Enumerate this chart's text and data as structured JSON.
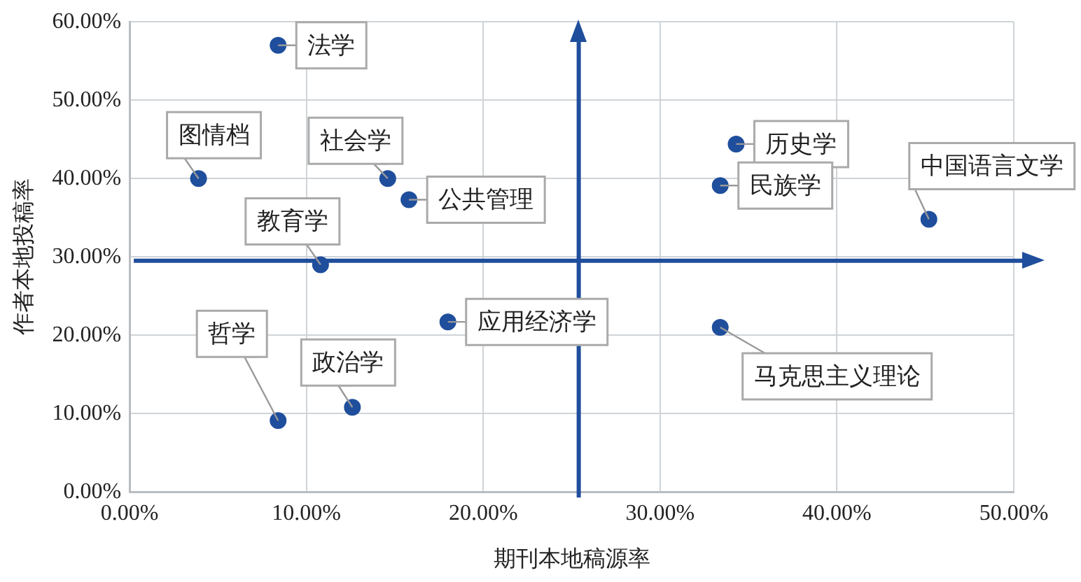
{
  "chart_data": {
    "type": "scatter",
    "xlabel": "期刊本地稿源率",
    "ylabel": "作者本地投稿率",
    "x": [
      8.4,
      3.9,
      14.6,
      15.8,
      10.8,
      8.4,
      12.6,
      18.0,
      34.3,
      33.4,
      45.2,
      33.4
    ],
    "series": [
      {
        "color": "#1f4e9c",
        "values": [
          57.0,
          40.0,
          40.0,
          37.3,
          29.0,
          9.1,
          10.8,
          21.7,
          44.4,
          39.1,
          34.8,
          21.0
        ]
      }
    ],
    "xlim": [
      0,
      50
    ],
    "ylim": [
      0,
      60
    ],
    "xticks": [
      {
        "value": 0,
        "label": "0.00%"
      },
      {
        "value": 10,
        "label": "10.00%"
      },
      {
        "value": 20,
        "label": "20.00%"
      },
      {
        "value": 30,
        "label": "30.00%"
      },
      {
        "value": 40,
        "label": "40.00%"
      },
      {
        "value": 50,
        "label": "50.00%"
      }
    ],
    "yticks": [
      {
        "value": 0,
        "label": "0.00%"
      },
      {
        "value": 10,
        "label": "10.00%"
      },
      {
        "value": 20,
        "label": "20.00%"
      },
      {
        "value": 30,
        "label": "30.00%"
      },
      {
        "value": 40,
        "label": "40.00%"
      },
      {
        "value": 50,
        "label": "50.00%"
      },
      {
        "value": 60,
        "label": "60.00%"
      }
    ],
    "grid": true,
    "marker": "circle",
    "ref_lines": [
      {
        "axis": "x",
        "value": 25.4,
        "color": "#1f4e9c"
      },
      {
        "axis": "y",
        "value": 29.5,
        "color": "#1f4e9c"
      }
    ],
    "annotations": [
      {
        "text": "法学",
        "x": 8.4,
        "y": 57.0
      },
      {
        "text": "图情档",
        "x": 3.9,
        "y": 40.0
      },
      {
        "text": "社会学",
        "x": 14.6,
        "y": 40.0
      },
      {
        "text": "公共管理",
        "x": 15.8,
        "y": 37.3
      },
      {
        "text": "教育学",
        "x": 10.8,
        "y": 29.0
      },
      {
        "text": "哲学",
        "x": 8.4,
        "y": 9.1
      },
      {
        "text": "政治学",
        "x": 12.6,
        "y": 10.8
      },
      {
        "text": "应用经济学",
        "x": 18.0,
        "y": 21.7
      },
      {
        "text": "历史学",
        "x": 34.3,
        "y": 44.4
      },
      {
        "text": "民族学",
        "x": 33.4,
        "y": 39.1
      },
      {
        "text": "中国语言文学",
        "x": 45.2,
        "y": 34.8
      },
      {
        "text": "马克思主义理论",
        "x": 33.4,
        "y": 21.0
      }
    ]
  }
}
